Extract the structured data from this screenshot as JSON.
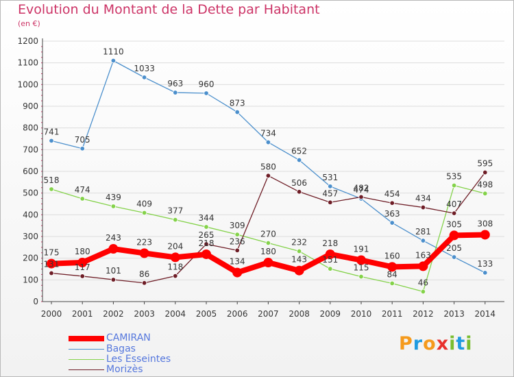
{
  "chart_data": {
    "type": "line",
    "title": "Evolution du Montant de la Dette par Habitant",
    "unit_label": "(en €)",
    "ylim": [
      0,
      1200
    ],
    "y_ticks": [
      0,
      100,
      200,
      300,
      400,
      500,
      600,
      700,
      800,
      900,
      1000,
      1100,
      1200
    ],
    "categories": [
      "2000",
      "2001",
      "2002",
      "2003",
      "2004",
      "2005",
      "2006",
      "2007",
      "2008",
      "2009",
      "2010",
      "2011",
      "2012",
      "2013",
      "2014"
    ],
    "grid": "horizontal",
    "legend_position": "bottom-left",
    "series": [
      {
        "name": "CAMIRAN",
        "color": "#ff0000",
        "values": [
          175,
          180,
          243,
          223,
          204,
          218,
          134,
          180,
          143,
          218,
          191,
          160,
          163,
          305,
          308
        ]
      },
      {
        "name": "Bagas",
        "color": "#4b8fcc",
        "values": [
          741,
          705,
          1110,
          1033,
          963,
          960,
          873,
          734,
          652,
          531,
          474,
          363,
          281,
          205,
          133
        ]
      },
      {
        "name": "Les Esseintes",
        "color": "#84d24a",
        "values": [
          518,
          474,
          439,
          409,
          377,
          344,
          309,
          270,
          232,
          151,
          115,
          84,
          46,
          535,
          498
        ]
      },
      {
        "name": "Morizès",
        "color": "#6e1d26",
        "values": [
          131,
          117,
          101,
          86,
          118,
          265,
          236,
          580,
          506,
          457,
          482,
          454,
          434,
          407,
          595
        ]
      }
    ]
  },
  "logo": {
    "p": "P",
    "r": "r",
    "o": "o",
    "x": "x",
    "i1": "i",
    "t": "t",
    "i2": "i"
  }
}
